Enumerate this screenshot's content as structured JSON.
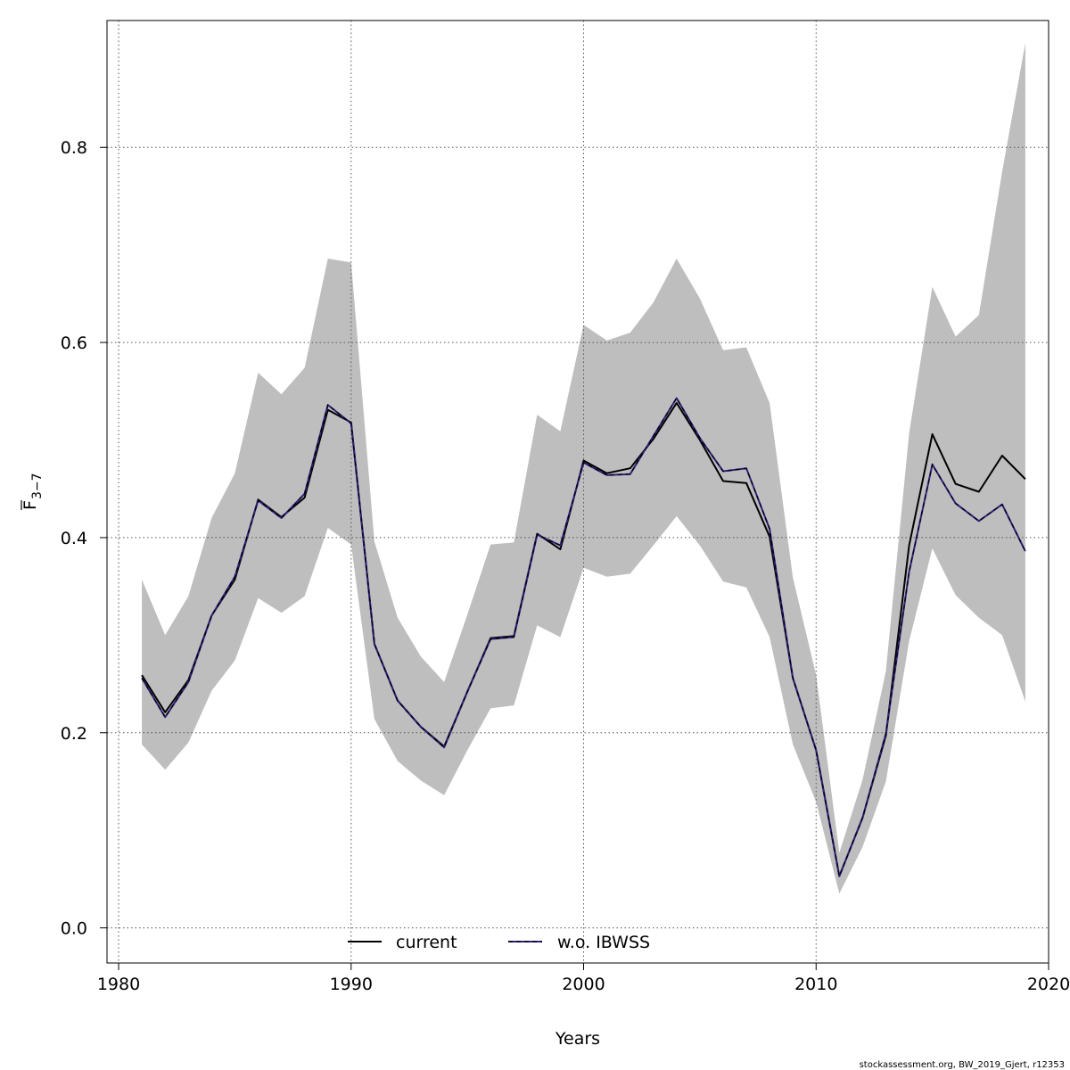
{
  "chart_data": {
    "type": "line",
    "xlabel": "Years",
    "ylabel_main": "F",
    "ylabel_sub": "3−7",
    "xlim": [
      1979.5,
      2020
    ],
    "ylim": [
      -0.036,
      0.93
    ],
    "xticks": [
      1980,
      1990,
      2000,
      2010,
      2020
    ],
    "yticks": [
      0.0,
      0.2,
      0.4,
      0.6,
      0.8
    ],
    "ytick_labels": [
      "0.0",
      "0.2",
      "0.4",
      "0.6",
      "0.8"
    ],
    "grid": true,
    "legend_placement": "bottom-center",
    "x": [
      1981,
      1982,
      1983,
      1984,
      1985,
      1986,
      1987,
      1988,
      1989,
      1990,
      1991,
      1992,
      1993,
      1994,
      1995,
      1996,
      1997,
      1998,
      1999,
      2000,
      2001,
      2002,
      2003,
      2004,
      2005,
      2006,
      2007,
      2008,
      2009,
      2010,
      2011,
      2012,
      2013,
      2014,
      2015,
      2016,
      2017,
      2018,
      2019
    ],
    "band": {
      "color": "#bebebe",
      "lower": [
        0.188,
        0.162,
        0.19,
        0.243,
        0.274,
        0.338,
        0.323,
        0.34,
        0.41,
        0.393,
        0.214,
        0.171,
        0.151,
        0.136,
        0.182,
        0.225,
        0.228,
        0.31,
        0.298,
        0.369,
        0.36,
        0.363,
        0.392,
        0.422,
        0.392,
        0.355,
        0.349,
        0.298,
        0.188,
        0.129,
        0.035,
        0.083,
        0.15,
        0.294,
        0.389,
        0.341,
        0.318,
        0.3,
        0.232
      ],
      "upper": [
        0.357,
        0.3,
        0.34,
        0.42,
        0.466,
        0.569,
        0.547,
        0.574,
        0.686,
        0.682,
        0.396,
        0.318,
        0.278,
        0.252,
        0.321,
        0.393,
        0.395,
        0.526,
        0.509,
        0.618,
        0.602,
        0.61,
        0.641,
        0.686,
        0.645,
        0.592,
        0.595,
        0.538,
        0.359,
        0.259,
        0.077,
        0.152,
        0.263,
        0.507,
        0.657,
        0.606,
        0.628,
        0.775,
        0.907
      ]
    },
    "series": [
      {
        "name": "current",
        "color": "#000000",
        "values": [
          0.259,
          0.221,
          0.254,
          0.32,
          0.357,
          0.439,
          0.421,
          0.441,
          0.531,
          0.518,
          0.291,
          0.233,
          0.206,
          0.186,
          0.242,
          0.297,
          0.299,
          0.404,
          0.388,
          0.479,
          0.466,
          0.471,
          0.501,
          0.538,
          0.5,
          0.458,
          0.456,
          0.401,
          0.256,
          0.182,
          0.053,
          0.113,
          0.197,
          0.392,
          0.506,
          0.455,
          0.447,
          0.484,
          0.46
        ]
      },
      {
        "name": "w.o. IBWSS",
        "color": "#2e2282",
        "values": [
          0.256,
          0.216,
          0.252,
          0.32,
          0.36,
          0.438,
          0.42,
          0.445,
          0.536,
          0.517,
          0.291,
          0.233,
          0.206,
          0.185,
          0.242,
          0.296,
          0.298,
          0.403,
          0.392,
          0.477,
          0.464,
          0.465,
          0.504,
          0.543,
          0.502,
          0.468,
          0.471,
          0.409,
          0.256,
          0.182,
          0.053,
          0.113,
          0.199,
          0.365,
          0.475,
          0.435,
          0.417,
          0.434,
          0.386
        ]
      }
    ]
  },
  "footer": {
    "credit": "stockassessment.org, BW_2019_Gjert, r12353"
  }
}
